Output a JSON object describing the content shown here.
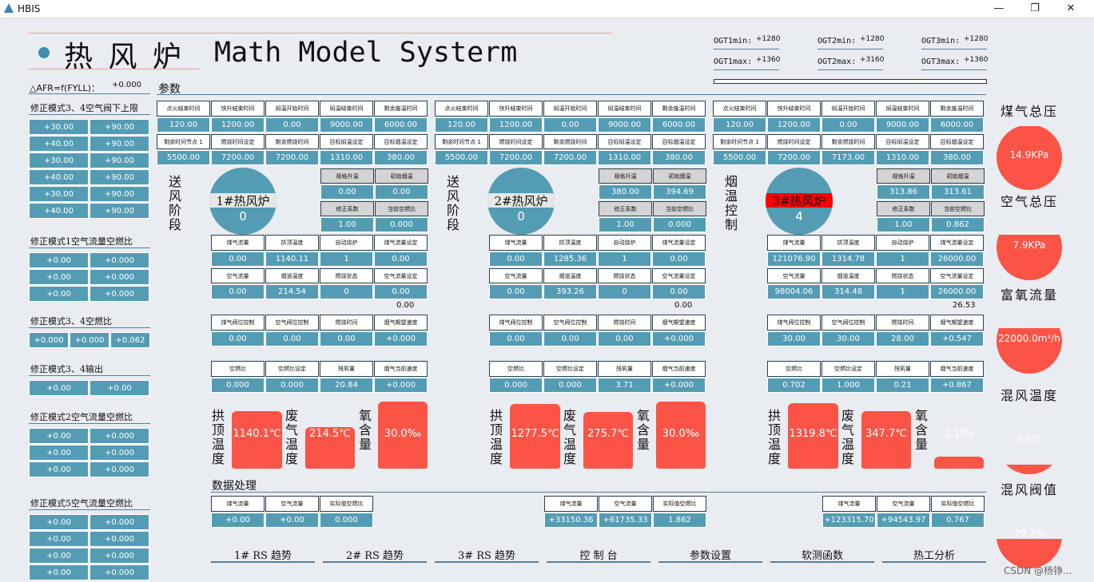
{
  "window": {
    "title": "HBIS",
    "min": "—",
    "max": "❐",
    "close": "✕"
  },
  "header": {
    "cn_title": "热 风 炉",
    "en_title": "Math Model Systerm",
    "ogt": [
      {
        "min_label": "OGT1min:",
        "min_value": "+1280",
        "max_label": "OGT1max:",
        "max_value": "+1360"
      },
      {
        "min_label": "OGT2min:",
        "min_value": "+1280",
        "max_label": "OGT2max:",
        "max_value": "+3160"
      },
      {
        "min_label": "OGT3min:",
        "min_value": "+1280",
        "max_label": "OGT3max:",
        "max_value": "+1360"
      }
    ]
  },
  "left": {
    "afr_label": "△AFR=f(FYLL)：",
    "afr_value": "+0.000",
    "s1": {
      "title": "修正模式3、4空气阀下上限",
      "rows": [
        [
          "+30.00",
          "+90.00"
        ],
        [
          "+40.00",
          "+90.00"
        ],
        [
          "+30.00",
          "+90.00"
        ],
        [
          "+40.00",
          "+90.00"
        ],
        [
          "+30.00",
          "+90.00"
        ],
        [
          "+40.00",
          "+90.00"
        ]
      ]
    },
    "s2": {
      "title": "修正模式1空气流量空燃比",
      "rows": [
        [
          "+0.00",
          "+0.000"
        ],
        [
          "+0.00",
          "+0.000"
        ],
        [
          "+0.00",
          "+0.000"
        ]
      ]
    },
    "s3": {
      "title": "修正模式3、4空燃比",
      "vals": [
        "+0.000",
        "+0.000",
        "+0.062"
      ]
    },
    "s4": {
      "title": "修正模式3、4输出",
      "vals": [
        "+0.00",
        "+0.00"
      ]
    },
    "s5": {
      "title": "修正模式2空气流量空燃比",
      "rows": [
        [
          "+0.00",
          "+0.000"
        ],
        [
          "+0.00",
          "+0.000"
        ],
        [
          "+0.00",
          "+0.000"
        ]
      ]
    },
    "s6": {
      "title": "修正模式5空气流量空燃比",
      "rows": [
        [
          "+0.00",
          "+0.000"
        ],
        [
          "+0.00",
          "+0.000"
        ],
        [
          "+0.00",
          "+0.000"
        ],
        [
          "+0.00",
          "+0.000"
        ]
      ]
    }
  },
  "section_params": "参数",
  "section_data": "数据处理",
  "top_labels_1": [
    "点火结束时间",
    "快升结束时间",
    "焖温开始时间",
    "焖温结束时间",
    "剩余废温时间"
  ],
  "top_labels_2": [
    "剩余时间节点 1",
    "燃烧时间设定",
    "剩余燃烧时间",
    "目标焖温设定",
    "目标烟温设定"
  ],
  "side_labels": [
    "规格升温",
    "初始烟温",
    "修正系数",
    "当前空燃比"
  ],
  "mid_labels_1": [
    "煤气流量",
    "拱顶温度",
    "自动烧炉",
    "煤气流量设定"
  ],
  "mid_labels_2": [
    "空气流量",
    "烟道温度",
    "燃烧状态",
    "空气流量设定"
  ],
  "ctl_labels": [
    "煤气阀位控制",
    "空气阀位控制",
    "燃烧时间",
    "烟气期望速度"
  ],
  "ratio_labels": [
    "空燃比",
    "空燃比设定",
    "残氧量",
    "烟气当前速度"
  ],
  "tank_labels": [
    "拱顶温度",
    "废气温度",
    "氧含量"
  ],
  "dp_labels": [
    "煤气流量",
    "空气流量",
    "实际值空燃比"
  ],
  "stoves": [
    {
      "stage": "送风阶段",
      "name": "1#热风炉",
      "num": "0",
      "alarm": false,
      "top1": [
        "120.00",
        "1200.00",
        "0.00",
        "9000.00",
        "6000.00"
      ],
      "top2": [
        "5500.00",
        "7200.00",
        "7200.00",
        "1310.00",
        "380.00"
      ],
      "side1": [
        "0.00",
        "0.00"
      ],
      "side2": [
        "1.00",
        "0.000"
      ],
      "mid1": [
        "0.00",
        "1140.11",
        "1",
        "0.00"
      ],
      "mid2": [
        "0.00",
        "214.54",
        "0",
        "0.00"
      ],
      "extra": "0.00",
      "ctl": [
        "0.00",
        "0.00",
        "0.00",
        "+0.000"
      ],
      "ratio": [
        "0.000",
        "0.000",
        "20.84",
        "+0.000"
      ],
      "tanks": [
        {
          "v": "1140.1℃",
          "f": 0.86
        },
        {
          "v": "214.5℃",
          "f": 0.62
        },
        {
          "v": "30.0‰",
          "f": 1.0
        }
      ],
      "dp": [
        "+0.00",
        "+0.00",
        "0.000"
      ]
    },
    {
      "stage": "送风阶段",
      "name": "2#热风炉",
      "num": "0",
      "alarm": false,
      "top1": [
        "120.00",
        "1200.00",
        "0.00",
        "9000.00",
        "6000.00"
      ],
      "top2": [
        "5500.00",
        "7200.00",
        "7200.00",
        "1310.00",
        "380.00"
      ],
      "side1": [
        "380.00",
        "394.69"
      ],
      "side2": [
        "1.00",
        "0.000"
      ],
      "mid1": [
        "0.00",
        "1285.36",
        "1",
        "0.00"
      ],
      "mid2": [
        "0.00",
        "393.26",
        "0",
        "0.00"
      ],
      "extra": "0.00",
      "ctl": [
        "0.00",
        "0.00",
        "0.00",
        "+0.000"
      ],
      "ratio": [
        "0.000",
        "0.000",
        "3.71",
        "+0.000"
      ],
      "tanks": [
        {
          "v": "1277.5℃",
          "f": 0.96
        },
        {
          "v": "275.7℃",
          "f": 0.84
        },
        {
          "v": "30.0‰",
          "f": 1.0
        }
      ],
      "dp": [
        "+33150.36",
        "+61735.33",
        "1.862"
      ]
    },
    {
      "stage": "烟温控制",
      "name": "3#热风炉",
      "num": "4",
      "alarm": true,
      "top1": [
        "120.00",
        "1200.00",
        "0.00",
        "9000.00",
        "6000.00"
      ],
      "top2": [
        "5500.00",
        "7200.00",
        "7173.00",
        "1310.00",
        "380.00"
      ],
      "side1": [
        "313.86",
        "313.61"
      ],
      "side2": [
        "1.00",
        "0.862"
      ],
      "mid1": [
        "121076.90",
        "1314.78",
        "1",
        "26000.00"
      ],
      "mid2": [
        "98004.06",
        "314.48",
        "1",
        "26000.00"
      ],
      "extra": "26.53",
      "ctl": [
        "30.00",
        "30.00",
        "28.00",
        "+0.547"
      ],
      "ratio": [
        "0.702",
        "1.000",
        "0.21",
        "+0.867"
      ],
      "tanks": [
        {
          "v": "1319.8℃",
          "f": 0.98
        },
        {
          "v": "347.7℃",
          "f": 0.86
        },
        {
          "v": "2.1‰",
          "f": 0.18
        }
      ],
      "dp": [
        "+123315.70",
        "+94543.97",
        "0.767"
      ]
    }
  ],
  "right": [
    {
      "title": "煤气总压",
      "value": "14.9KPa",
      "fill": 0.98
    },
    {
      "title": "空气总压",
      "value": "7.9KPa",
      "fill": 0.7
    },
    {
      "title": "富氧流量",
      "value": "22000.0m³/h",
      "fill": 0.7
    },
    {
      "title": "混风温度",
      "value": "0.0℃",
      "fill": 0.15
    },
    {
      "title": "混风阀值",
      "value": "29.7%",
      "fill": 0.45
    }
  ],
  "nav": [
    "1# RS 趋势",
    "2# RS 趋势",
    "3# RS 趋势",
    "控 制 台",
    "参数设置",
    "软测函数",
    "热工分析"
  ],
  "watermark": "CSDN @杨铮..."
}
